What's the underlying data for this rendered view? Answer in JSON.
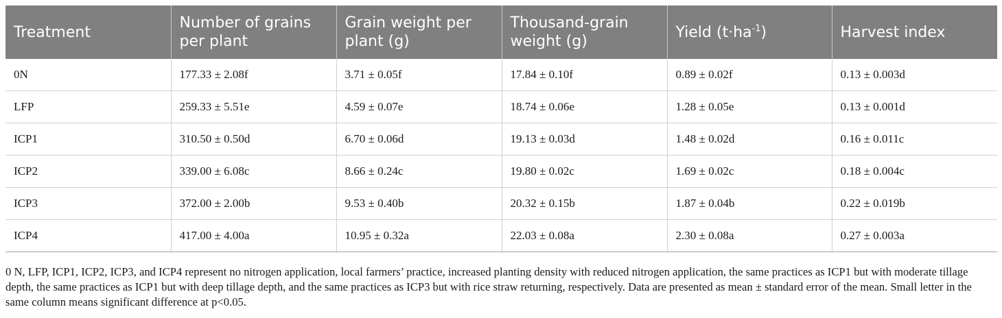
{
  "table": {
    "headers": [
      "Treatment",
      "Number of grains per plant",
      "Grain weight per plant (g)",
      "Thousand-grain weight (g)",
      "Yield (t·ha",
      "Harvest index"
    ],
    "yield_sup": "-1",
    "yield_close": ")",
    "rows": [
      [
        "0N",
        "177.33 ± 2.08f",
        "3.71 ± 0.05f",
        "17.84 ± 0.10f",
        "0.89 ± 0.02f",
        "0.13 ± 0.003d"
      ],
      [
        "LFP",
        "259.33 ± 5.51e",
        "4.59 ± 0.07e",
        "18.74 ± 0.06e",
        "1.28 ± 0.05e",
        "0.13 ± 0.001d"
      ],
      [
        "ICP1",
        "310.50 ± 0.50d",
        "6.70 ± 0.06d",
        "19.13 ± 0.03d",
        "1.48 ± 0.02d",
        "0.16 ± 0.011c"
      ],
      [
        "ICP2",
        "339.00 ± 6.08c",
        "8.66 ± 0.24c",
        "19.80 ± 0.02c",
        "1.69 ± 0.02c",
        "0.18 ± 0.004c"
      ],
      [
        "ICP3",
        "372.00 ± 2.00b",
        "9.53 ± 0.40b",
        "20.32 ± 0.15b",
        "1.87 ± 0.04b",
        "0.22 ± 0.019b"
      ],
      [
        "ICP4",
        "417.00 ± 4.00a",
        "10.95 ± 0.32a",
        "22.03 ± 0.08a",
        "2.30 ± 0.08a",
        "0.27 ± 0.003a"
      ]
    ]
  },
  "footnote": "0 N, LFP, ICP1, ICP2, ICP3, and ICP4 represent no nitrogen application, local farmers’ practice, increased planting density with reduced nitrogen application, the same practices as ICP1 but with moderate tillage depth, the same practices as ICP1 but with deep tillage depth, and the same practices as ICP3 but with rice straw returning, respectively. Data are presented as mean ± standard error of the mean. Small letter in the same column means significant difference at p<0.05."
}
